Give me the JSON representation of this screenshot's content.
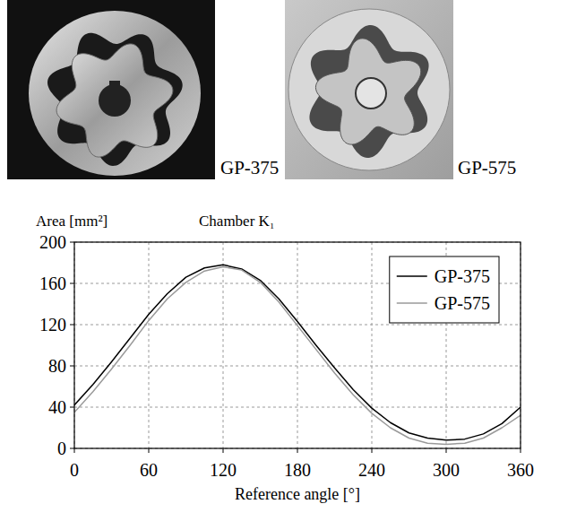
{
  "photos": [
    {
      "label": "GP-375"
    },
    {
      "label": "GP-575"
    }
  ],
  "chart_data": {
    "type": "line",
    "title": "Chamber K₁",
    "y_label": "Area [mm²]",
    "x_label": "Reference angle  [°]",
    "x": [
      0,
      15,
      30,
      45,
      60,
      75,
      90,
      105,
      120,
      135,
      150,
      165,
      180,
      195,
      210,
      225,
      240,
      255,
      270,
      285,
      300,
      315,
      330,
      345,
      360
    ],
    "series": [
      {
        "name": "GP-375",
        "color": "#000000",
        "values": [
          42,
          62,
          84,
          107,
          130,
          150,
          166,
          175,
          178,
          174,
          163,
          145,
          123,
          100,
          78,
          57,
          39,
          25,
          15,
          10,
          8,
          9,
          14,
          24,
          40
        ]
      },
      {
        "name": "GP-575",
        "color": "#9a9a9a",
        "values": [
          35,
          55,
          77,
          100,
          124,
          145,
          161,
          172,
          176,
          173,
          161,
          142,
          119,
          96,
          73,
          52,
          34,
          20,
          10,
          5,
          4,
          5,
          10,
          20,
          32
        ]
      }
    ],
    "xlim": [
      0,
      360
    ],
    "xticks": [
      0,
      60,
      120,
      180,
      240,
      300,
      360
    ],
    "ylim": [
      0,
      200
    ],
    "yticks": [
      0,
      40,
      80,
      120,
      160,
      200
    ],
    "grid": true,
    "legend": "top-right"
  }
}
